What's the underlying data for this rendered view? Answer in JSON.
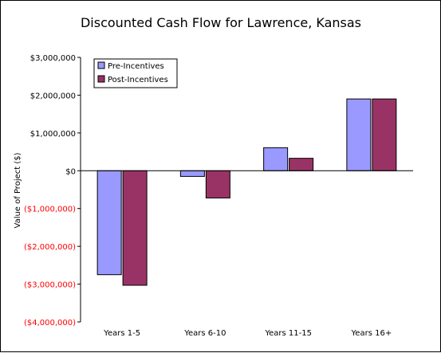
{
  "chart_data": {
    "type": "bar",
    "title": "Discounted Cash Flow for Lawrence, Kansas",
    "xlabel": "",
    "ylabel": "Value of Project ($)",
    "categories": [
      "Years 1-5",
      "Years 6-10",
      "Years 11-15",
      "Years 16+"
    ],
    "series": [
      {
        "name": "Pre-Incentives",
        "color": "#9999ff",
        "values": [
          -2750000,
          -150000,
          610000,
          1900000
        ]
      },
      {
        "name": "Post-Incentives",
        "color": "#993366",
        "values": [
          -3030000,
          -720000,
          330000,
          1900000
        ]
      }
    ],
    "ylim": [
      -4000000,
      3000000
    ],
    "y_ticks": [
      {
        "value": 3000000,
        "label": "$3,000,000"
      },
      {
        "value": 2000000,
        "label": "$2,000,000"
      },
      {
        "value": 1000000,
        "label": "$1,000,000"
      },
      {
        "value": 0,
        "label": "$0"
      },
      {
        "value": -1000000,
        "label": "($1,000,000)"
      },
      {
        "value": -2000000,
        "label": "($2,000,000)"
      },
      {
        "value": -3000000,
        "label": "($3,000,000)"
      },
      {
        "value": -4000000,
        "label": "($4,000,000)"
      }
    ],
    "negative_tick_color": "#ff0000",
    "positive_tick_color": "#000000",
    "grid": false,
    "legend_position": "top-left"
  }
}
